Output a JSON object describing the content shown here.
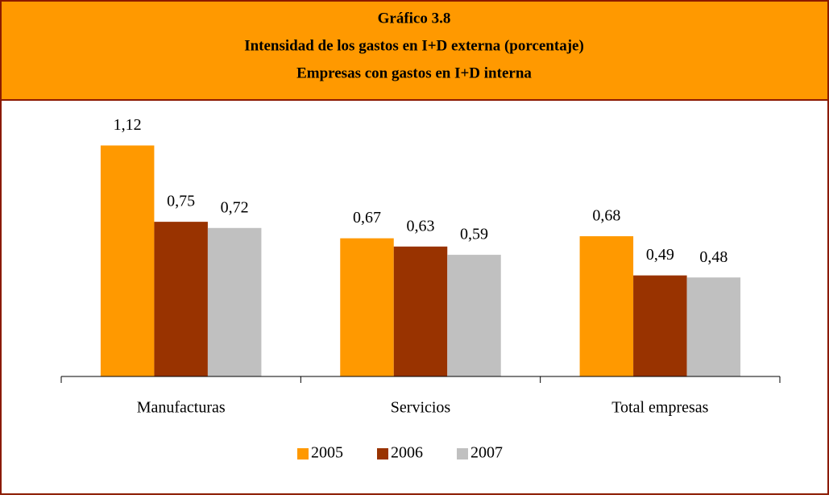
{
  "chart_data": {
    "type": "bar",
    "title": "Gráfico 3.8",
    "subtitle": "Intensidad de los gastos en I+D externa (porcentaje)",
    "subtitle2": "Empresas con gastos en I+D interna",
    "categories": [
      "Manufacturas",
      "Servicios",
      "Total empresas"
    ],
    "series": [
      {
        "name": "2005",
        "color": "#ff9900",
        "values": [
          1.12,
          0.67,
          0.68
        ],
        "value_labels": [
          "1,12",
          "0,67",
          "0,68"
        ]
      },
      {
        "name": "2006",
        "color": "#993300",
        "values": [
          0.75,
          0.63,
          0.49
        ],
        "value_labels": [
          "0,75",
          "0,63",
          "0,49"
        ]
      },
      {
        "name": "2007",
        "color": "#c0c0c0",
        "values": [
          0.72,
          0.59,
          0.48
        ],
        "value_labels": [
          "0,72",
          "0,59",
          "0,48"
        ]
      }
    ],
    "ylim": [
      0,
      1.2
    ],
    "legend": "bottom"
  }
}
